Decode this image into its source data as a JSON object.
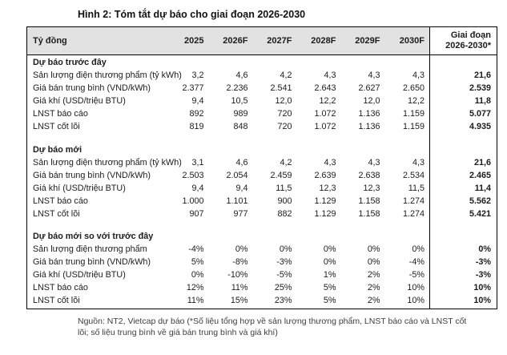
{
  "title": "Hình 2: Tóm tắt dự báo cho giai đoạn 2026-2030",
  "colors": {
    "header_bg": "#e2e2e2",
    "table_border": "#000000",
    "footer_text": "#3d3d3d"
  },
  "table": {
    "unit_label": "Tỷ đồng",
    "year_columns": [
      "2025",
      "2026F",
      "2027F",
      "2028F",
      "2029F",
      "2030F"
    ],
    "period_column": {
      "line1": "Giai đoạn",
      "line2": "2026-2030*"
    },
    "sections": [
      {
        "heading": "Dự báo trước đây",
        "rows": [
          {
            "label": "Sản lượng điện thương phẩm (tỷ kWh)",
            "values": [
              "3,2",
              "4,6",
              "4,2",
              "4,3",
              "4,3",
              "4,3"
            ],
            "period": "21,6"
          },
          {
            "label": "Giá bán trung bình (VND/kWh)",
            "values": [
              "2.377",
              "2.236",
              "2.541",
              "2.643",
              "2.627",
              "2.650"
            ],
            "period": "2.539"
          },
          {
            "label": "Giá khí (USD/triệu BTU)",
            "values": [
              "9,4",
              "10,5",
              "12,0",
              "12,2",
              "12,0",
              "12,2"
            ],
            "period": "11,8"
          },
          {
            "label": "LNST báo cáo",
            "values": [
              "892",
              "989",
              "720",
              "1.072",
              "1.136",
              "1.159"
            ],
            "period": "5.077"
          },
          {
            "label": "LNST cốt lõi",
            "values": [
              "819",
              "848",
              "720",
              "1.072",
              "1.136",
              "1.159"
            ],
            "period": "4.935"
          }
        ]
      },
      {
        "heading": "Dự báo mới",
        "rows": [
          {
            "label": "Sản lượng điện thương phẩm (tỷ kWh)",
            "values": [
              "3,1",
              "4,6",
              "4,2",
              "4,3",
              "4,3",
              "4,3"
            ],
            "period": "21,6"
          },
          {
            "label": "Giá bán trung bình (VND/kWh)",
            "values": [
              "2.503",
              "2.054",
              "2.459",
              "2.639",
              "2.638",
              "2.534"
            ],
            "period": "2.465"
          },
          {
            "label": "Giá khí (USD/triệu BTU)",
            "values": [
              "9,4",
              "9,4",
              "11,5",
              "12,3",
              "12,3",
              "11,5"
            ],
            "period": "11,4"
          },
          {
            "label": "LNST báo cáo",
            "values": [
              "1.000",
              "1.101",
              "900",
              "1.129",
              "1.158",
              "1.274"
            ],
            "period": "5.562"
          },
          {
            "label": "LNST cốt lõi",
            "values": [
              "907",
              "977",
              "882",
              "1.129",
              "1.158",
              "1.274"
            ],
            "period": "5.421"
          }
        ]
      },
      {
        "heading": "Dự báo mới so với trước đây",
        "rows": [
          {
            "label": "Sản lượng điện thương phẩm",
            "values": [
              "-4%",
              "0%",
              "0%",
              "0%",
              "0%",
              "0%"
            ],
            "period": "0%"
          },
          {
            "label": "Giá bán trung bình (VND/kWh)",
            "values": [
              "5%",
              "-8%",
              "-3%",
              "0%",
              "0%",
              "-4%"
            ],
            "period": "-3%"
          },
          {
            "label": "Giá khí (USD/triệu BTU)",
            "values": [
              "0%",
              "-10%",
              "-5%",
              "1%",
              "2%",
              "-5%"
            ],
            "period": "-3%"
          },
          {
            "label": "LNST báo cáo",
            "values": [
              "12%",
              "11%",
              "25%",
              "5%",
              "2%",
              "10%"
            ],
            "period": "10%"
          },
          {
            "label": "LNST cốt lõi",
            "values": [
              "11%",
              "15%",
              "23%",
              "5%",
              "2%",
              "10%"
            ],
            "period": "10%"
          }
        ]
      }
    ]
  },
  "footer": {
    "source_note": "Nguồn: NT2, Vietcap dự báo (*Số liệu tổng hợp về sản lượng thương phẩm, LNST báo cáo và LNST cốt lõi; số liệu trung bình về giá bán trung bình và giá khí)"
  }
}
